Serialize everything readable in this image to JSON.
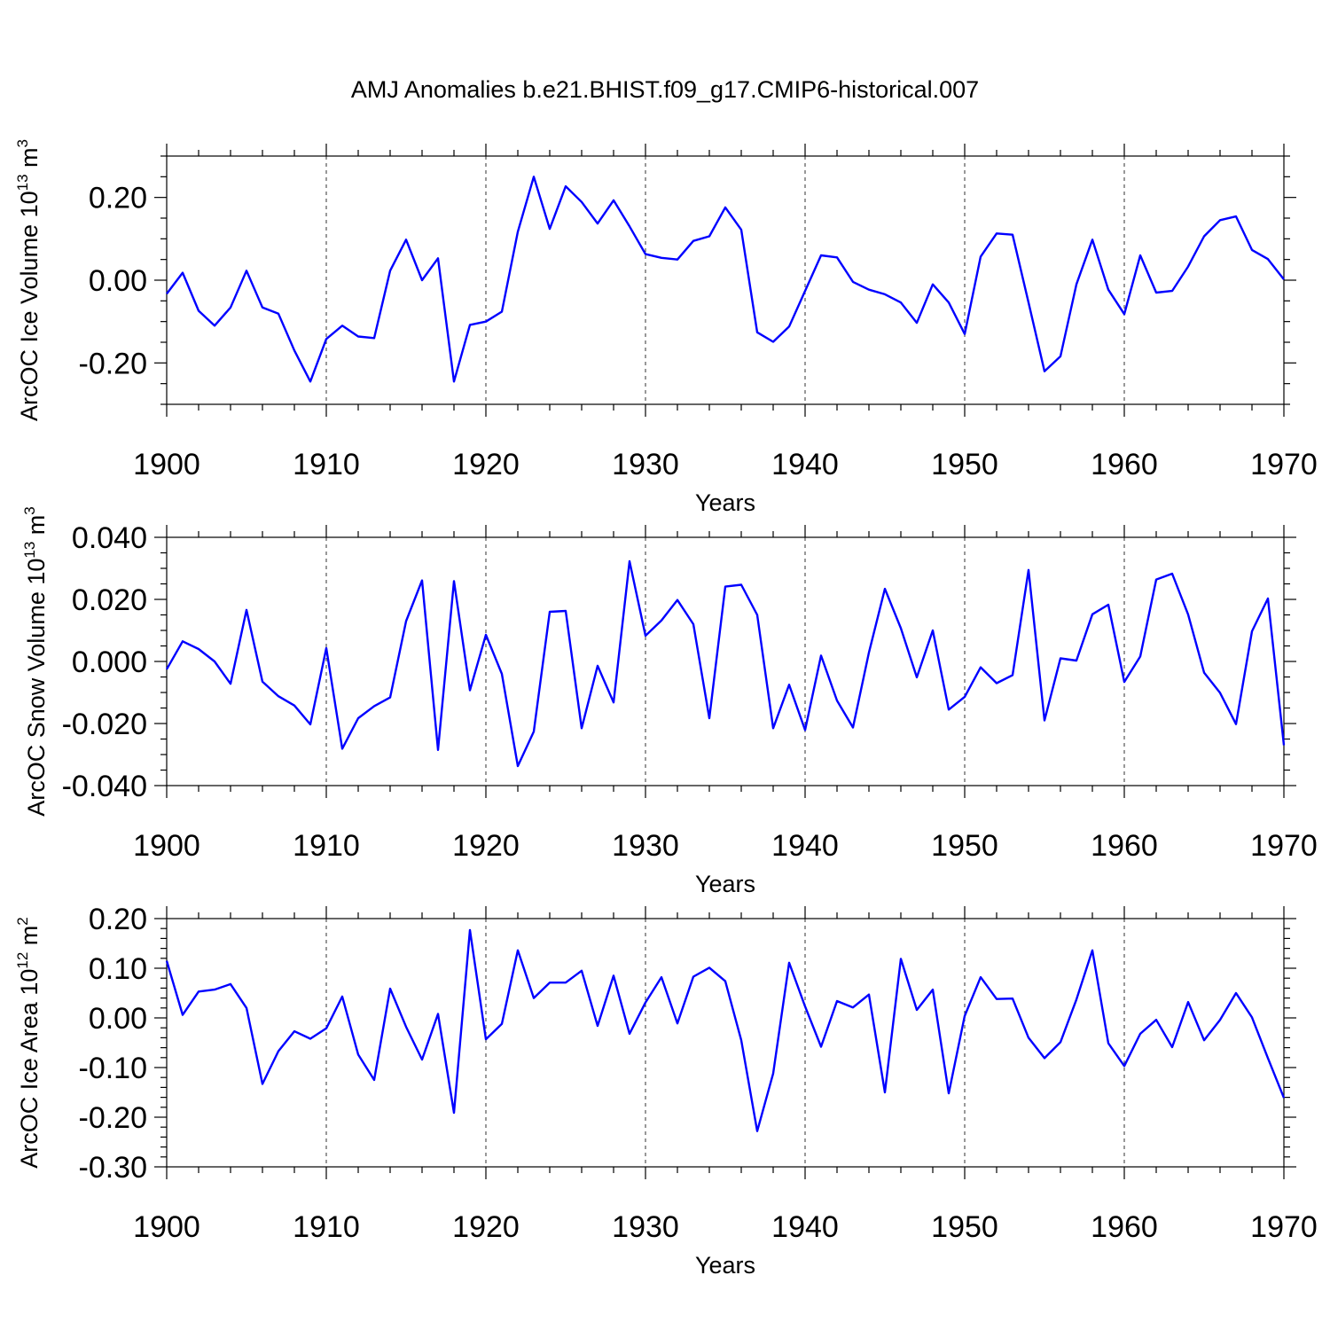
{
  "figure_title": "AMJ Anomalies b.e21.BHIST.f09_g17.CMIP6-historical.007",
  "line_color": "#0000ff",
  "chart_data": [
    {
      "type": "line",
      "id": "ice-volume",
      "title": "AMJ Anomalies b.e21.BHIST.f09_g17.CMIP6-historical.007",
      "xlabel": "Years",
      "ylabel": "ArcOC Ice Volume 10",
      "ylabel_sup": "13",
      "ylabel_unit": "m",
      "ylabel_unit_sup": "3",
      "xlim": [
        1900,
        1970
      ],
      "ylim": [
        -0.3,
        0.3
      ],
      "xticks": [
        "1900",
        "1910",
        "1920",
        "1930",
        "1940",
        "1950",
        "1960",
        "1970"
      ],
      "yticks": [
        -0.2,
        0.0,
        0.2
      ],
      "ytick_labels": [
        "-0.20",
        "0.00",
        "0.20"
      ],
      "ytick_minor_step": 0.05,
      "grid": "vertical dashed at major x ticks",
      "x_start": 1900,
      "values": [
        -0.033,
        0.018,
        -0.074,
        -0.11,
        -0.066,
        0.023,
        -0.066,
        -0.081,
        -0.17,
        -0.245,
        -0.142,
        -0.11,
        -0.136,
        -0.14,
        0.023,
        0.098,
        0.0,
        0.053,
        -0.245,
        -0.108,
        -0.1,
        -0.076,
        0.117,
        0.25,
        0.124,
        0.227,
        0.189,
        0.137,
        0.193,
        0.13,
        0.063,
        0.054,
        0.05,
        0.095,
        0.106,
        0.176,
        0.122,
        -0.126,
        -0.149,
        -0.112,
        -0.026,
        0.06,
        0.055,
        -0.004,
        -0.023,
        -0.034,
        -0.054,
        -0.103,
        -0.01,
        -0.054,
        -0.13,
        0.057,
        0.113,
        0.11,
        -0.054,
        -0.22,
        -0.184,
        -0.01,
        0.098,
        -0.023,
        -0.082,
        0.06,
        -0.03,
        -0.026,
        0.033,
        0.106,
        0.145,
        0.154,
        0.073,
        0.051,
        0.002
      ]
    },
    {
      "type": "line",
      "id": "snow-volume",
      "xlabel": "Years",
      "ylabel": "ArcOC Snow Volume 10",
      "ylabel_sup": "13",
      "ylabel_unit": "m",
      "ylabel_unit_sup": "3",
      "xlim": [
        1900,
        1970
      ],
      "ylim": [
        -0.04,
        0.04
      ],
      "xticks": [
        "1900",
        "1910",
        "1920",
        "1930",
        "1940",
        "1950",
        "1960",
        "1970"
      ],
      "yticks": [
        -0.04,
        -0.02,
        0.0,
        0.02,
        0.04
      ],
      "ytick_labels": [
        "-0.040",
        "-0.020",
        "0.000",
        "0.020",
        "0.040"
      ],
      "ytick_minor_step": 0.005,
      "grid": "vertical dashed at major x ticks",
      "x_start": 1900,
      "values": [
        -0.0025,
        0.0065,
        0.004,
        0.0,
        -0.0072,
        0.0166,
        -0.0065,
        -0.0112,
        -0.0142,
        -0.0203,
        0.0043,
        -0.0281,
        -0.0183,
        -0.0144,
        -0.0116,
        0.013,
        0.0261,
        -0.0285,
        0.0259,
        -0.0093,
        0.0086,
        -0.004,
        -0.0337,
        -0.0226,
        0.016,
        0.0163,
        -0.0215,
        -0.0014,
        -0.0132,
        0.0323,
        0.0083,
        0.0132,
        0.0198,
        0.012,
        -0.0183,
        0.0241,
        0.0247,
        0.015,
        -0.0215,
        -0.0075,
        -0.0221,
        0.0019,
        -0.0126,
        -0.0213,
        0.0029,
        0.0234,
        0.0107,
        -0.0051,
        0.01,
        -0.0155,
        -0.0114,
        -0.0019,
        -0.007,
        -0.0044,
        0.0295,
        -0.019,
        0.001,
        0.0003,
        0.0152,
        0.0183,
        -0.0066,
        0.0016,
        0.0264,
        0.0283,
        0.0151,
        -0.0036,
        -0.0101,
        -0.0202,
        0.0097,
        0.0203,
        -0.027
      ]
    },
    {
      "type": "line",
      "id": "ice-area",
      "xlabel": "Years",
      "ylabel": "ArcOC Ice Area 10",
      "ylabel_sup": "12",
      "ylabel_unit": "m",
      "ylabel_unit_sup": "2",
      "xlim": [
        1900,
        1970
      ],
      "ylim": [
        -0.3,
        0.2
      ],
      "xticks": [
        "1900",
        "1910",
        "1920",
        "1930",
        "1940",
        "1950",
        "1960",
        "1970"
      ],
      "yticks": [
        -0.3,
        -0.2,
        -0.1,
        0.0,
        0.1,
        0.2
      ],
      "ytick_labels": [
        "-0.30",
        "-0.20",
        "-0.10",
        "0.00",
        "0.10",
        "0.20"
      ],
      "ytick_minor_step": 0.02,
      "grid": "vertical dashed at major x ticks",
      "x_start": 1900,
      "values": [
        0.115,
        0.006,
        0.053,
        0.057,
        0.068,
        0.02,
        -0.133,
        -0.067,
        -0.027,
        -0.042,
        -0.021,
        0.043,
        -0.074,
        -0.125,
        0.059,
        -0.018,
        -0.084,
        0.008,
        -0.191,
        0.177,
        -0.043,
        -0.012,
        0.136,
        0.04,
        0.071,
        0.071,
        0.095,
        -0.016,
        0.085,
        -0.032,
        0.031,
        0.082,
        -0.011,
        0.083,
        0.101,
        0.074,
        -0.045,
        -0.228,
        -0.112,
        0.111,
        0.023,
        -0.058,
        0.034,
        0.021,
        0.047,
        -0.15,
        0.119,
        0.016,
        0.057,
        -0.152,
        0.004,
        0.082,
        0.038,
        0.039,
        -0.04,
        -0.081,
        -0.049,
        0.037,
        0.136,
        -0.051,
        -0.097,
        -0.032,
        -0.004,
        -0.059,
        0.032,
        -0.045,
        -0.004,
        0.05,
        0.001,
        -0.081,
        -0.161
      ]
    }
  ]
}
